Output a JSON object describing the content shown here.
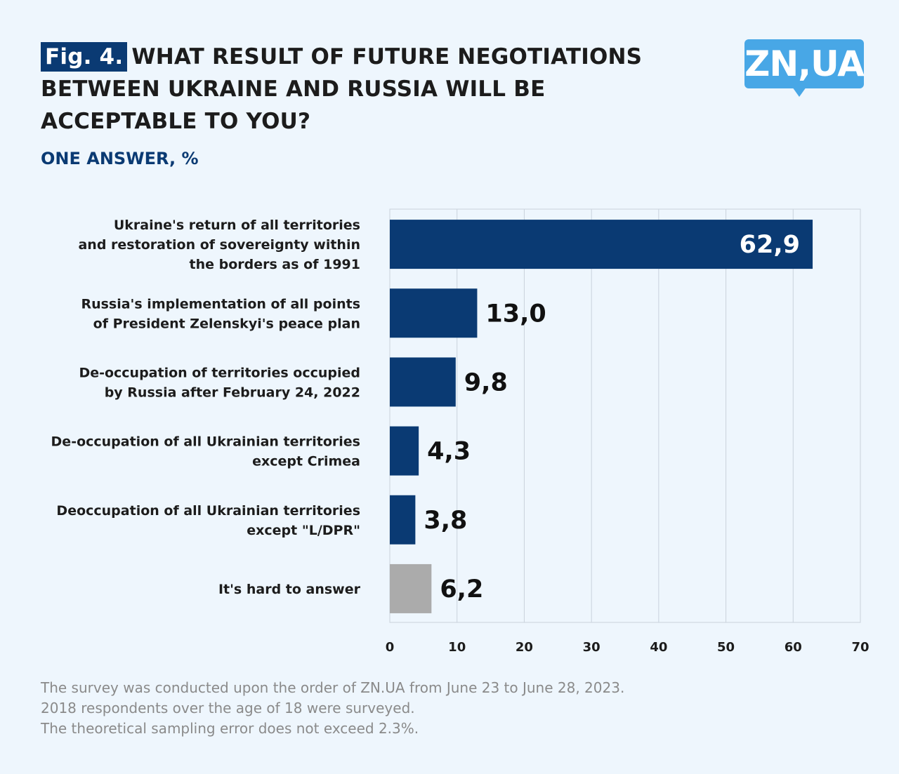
{
  "title": {
    "badge": "Fig. 4.",
    "line1": "WHAT RESULT OF FUTURE NEGOTIATIONS",
    "line2": "BETWEEN UKRAINE AND RUSSIA WILL BE",
    "line3": "ACCEPTABLE TO YOU?"
  },
  "subtitle": "ONE ANSWER, %",
  "logo": {
    "text": "ZN,UA",
    "icon": "zn-ua-speech-bubble-logo",
    "color": "#48a7e6"
  },
  "colors": {
    "primary_bar": "#0a3a73",
    "secondary_bar": "#ababab",
    "background": "#eef6fd",
    "grid": "#c9d2dc"
  },
  "chart_data": {
    "type": "bar",
    "orientation": "horizontal",
    "categories": [
      [
        "Ukraine's return of all territories",
        "and restoration of sovereignty within",
        "the borders as of 1991"
      ],
      [
        "Russia's implementation of all points",
        "of President Zelenskyi's peace plan"
      ],
      [
        "De-occupation of territories occupied",
        "by Russia after February 24, 2022"
      ],
      [
        "De-occupation of all Ukrainian territories",
        "except Crimea"
      ],
      [
        "Deoccupation of all Ukrainian territories",
        "except \"L/DPR\""
      ],
      [
        "It's hard to answer"
      ]
    ],
    "values": [
      62.9,
      13.0,
      9.8,
      4.3,
      3.8,
      6.2
    ],
    "value_labels": [
      "62,9",
      "13,0",
      "9,8",
      "4,3",
      "3,8",
      "6,2"
    ],
    "bar_colors": [
      "#0a3a73",
      "#0a3a73",
      "#0a3a73",
      "#0a3a73",
      "#0a3a73",
      "#ababab"
    ],
    "xlim": [
      0,
      70
    ],
    "xticks": [
      0,
      10,
      20,
      30,
      40,
      50,
      60,
      70
    ],
    "xtick_labels": [
      "0",
      "10",
      "20",
      "30",
      "40",
      "50",
      "60",
      "70"
    ],
    "grid": true
  },
  "footnote": {
    "line1": "The survey was conducted upon the order of ZN.UA from June 23 to June 28, 2023.",
    "line2": "2018 respondents over the age of 18 were surveyed.",
    "line3": "The theoretical sampling error does not exceed 2.3%."
  }
}
